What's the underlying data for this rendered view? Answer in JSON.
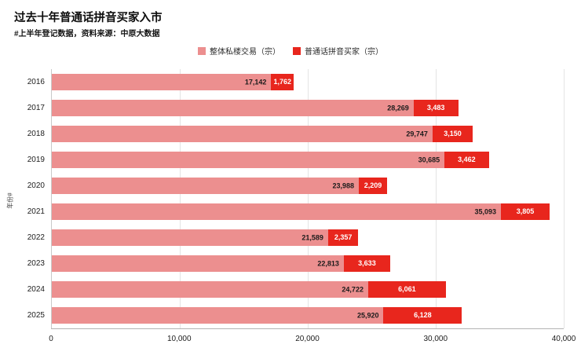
{
  "header": {
    "title": "过去十年普通话拼音买家入市",
    "subtitle": "#上半年登记数据，资料来源：中原大数据"
  },
  "legend": [
    {
      "label": "整体私楼交易（宗）",
      "color": "#ec8f8f"
    },
    {
      "label": "普通话拼音买家（宗）",
      "color": "#e8261d"
    }
  ],
  "chart_data": {
    "type": "bar",
    "orientation": "horizontal",
    "stacked": true,
    "title": "过去十年普通话拼音买家入市",
    "categories": [
      "2016",
      "2017",
      "2018",
      "2019",
      "2020",
      "2021",
      "2022",
      "2023",
      "2024",
      "2025"
    ],
    "series": [
      {
        "name": "整体私楼交易（宗）",
        "color": "#ec8f8f",
        "values": [
          17142,
          28269,
          29747,
          30685,
          23988,
          35093,
          21589,
          22813,
          24722,
          25920
        ]
      },
      {
        "name": "普通话拼音买家（宗）",
        "color": "#e8261d",
        "values": [
          1762,
          3483,
          3150,
          3462,
          2209,
          3805,
          2357,
          3633,
          6061,
          6128
        ]
      }
    ],
    "xlabel": "",
    "ylabel": "年份#",
    "xlim": [
      0,
      40000
    ],
    "x_ticks": [
      "0",
      "10,000",
      "20,000",
      "30,000",
      "40,000"
    ],
    "grid": "vertical",
    "legend_position": "top-center"
  }
}
